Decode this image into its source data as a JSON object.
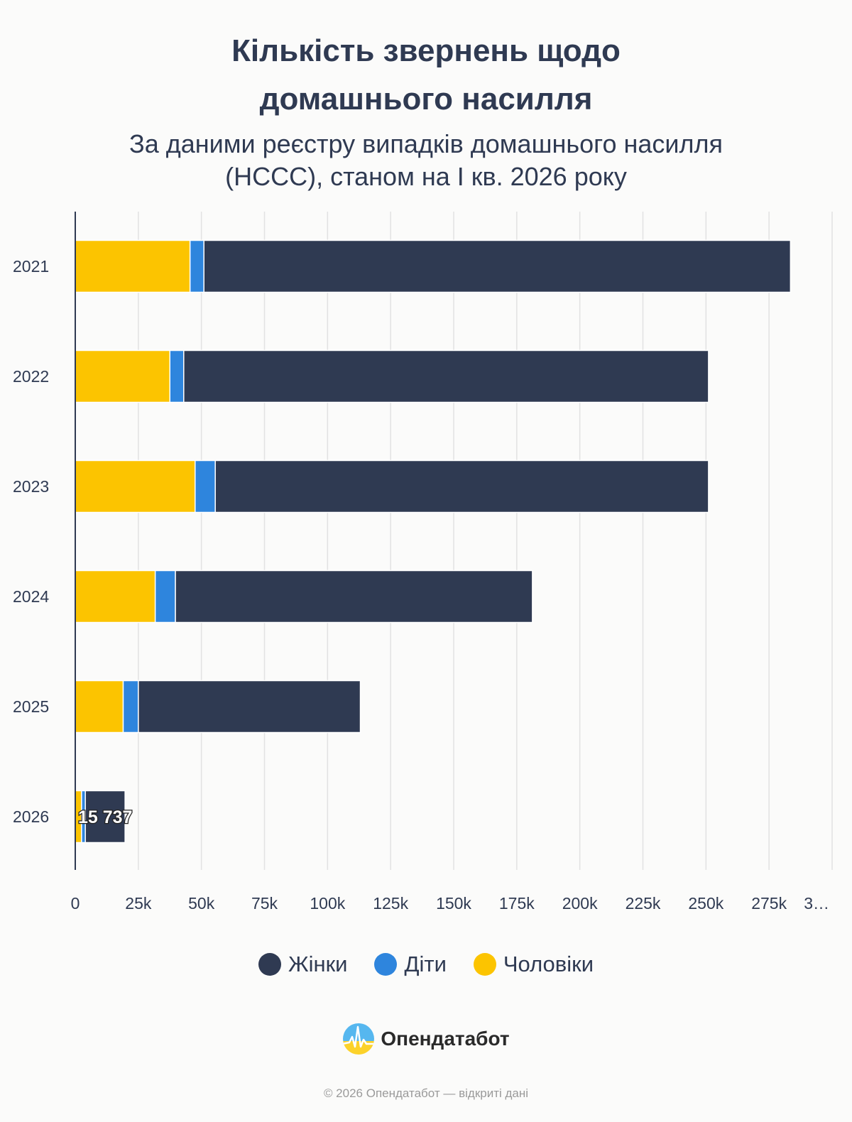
{
  "header": {
    "title_line1": "Кількість звернень щодо",
    "title_line2": "домашнього насилля",
    "subtitle_line1": "За даними реєстру випадків домашнього насилля",
    "subtitle_line2": "(НССС), станом на I кв. 2026 року"
  },
  "chart_data": {
    "type": "bar",
    "orientation": "horizontal",
    "stacked": true,
    "categories": [
      "2021",
      "2022",
      "2023",
      "2024",
      "2025",
      "2026"
    ],
    "series": [
      {
        "name": "Чоловіки",
        "color": "#fcc400",
        "values": [
          45500,
          37500,
          47500,
          31700,
          19000,
          2500
        ]
      },
      {
        "name": "Діти",
        "color": "#2e85dd",
        "values": [
          5500,
          5500,
          8000,
          8000,
          6000,
          1500
        ]
      },
      {
        "name": "Жінки",
        "color": "#2f3a52",
        "values": [
          232500,
          208000,
          195500,
          141500,
          88000,
          15737
        ]
      }
    ],
    "xlim": [
      0,
      300000
    ],
    "x_ticks": [
      "0",
      "25k",
      "50k",
      "75k",
      "100k",
      "125k",
      "150k",
      "175k",
      "200k",
      "225k",
      "250k",
      "275k",
      "3…"
    ],
    "data_labels": [
      {
        "category": "2026",
        "series": "Жінки",
        "text": "15 737"
      }
    ],
    "grid": true,
    "legend_position": "bottom"
  },
  "legend": [
    {
      "label": "Жінки",
      "color": "#2f3a52"
    },
    {
      "label": "Діти",
      "color": "#2e85dd"
    },
    {
      "label": "Чоловіки",
      "color": "#fcc400"
    }
  ],
  "brand": {
    "name": "Опендатабот",
    "icon": "opendatabot-logo"
  },
  "footer": {
    "text": "© 2026 Опендатабот — відкриті дані"
  }
}
